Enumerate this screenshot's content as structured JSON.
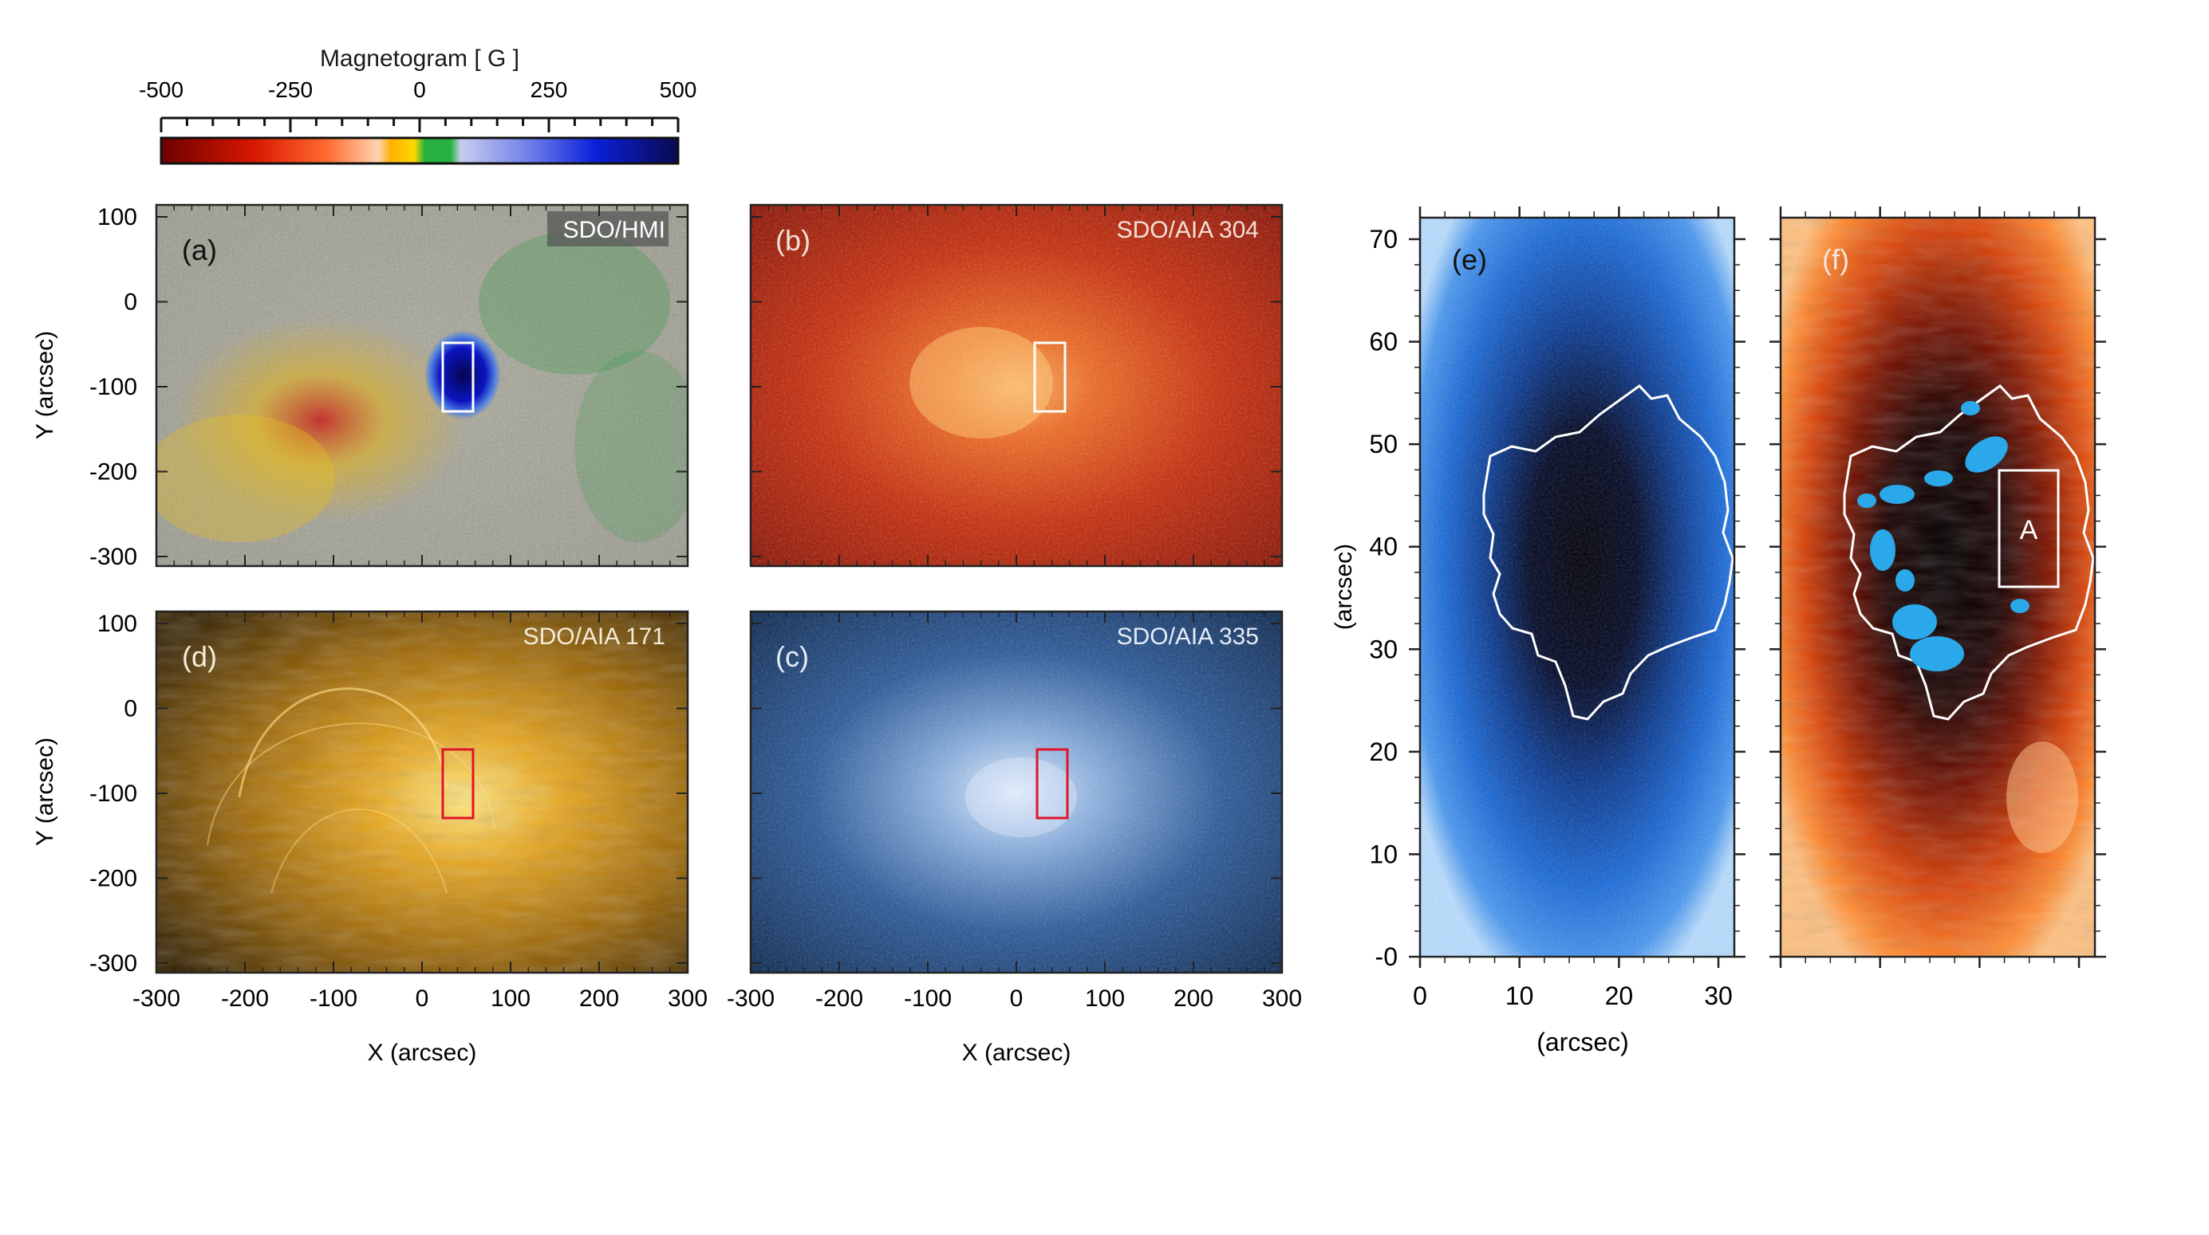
{
  "colorbar": {
    "title": "Magnetogram [ G ]",
    "ticks": [
      {
        "value": -500,
        "label": "-500"
      },
      {
        "value": -250,
        "label": "-250"
      },
      {
        "value": 0,
        "label": "0"
      },
      {
        "value": 250,
        "label": "250"
      },
      {
        "value": 500,
        "label": "500"
      }
    ]
  },
  "panels": {
    "a": {
      "label": "(a)",
      "instrument": "SDO/HMI"
    },
    "b": {
      "label": "(b)",
      "instrument": "SDO/AIA 304"
    },
    "c": {
      "label": "(c)",
      "instrument": "SDO/AIA 335"
    },
    "d": {
      "label": "(d)",
      "instrument": "SDO/AIA 171"
    },
    "e": {
      "label": "(e)"
    },
    "f": {
      "label": "(f)",
      "box_label": "A"
    }
  },
  "axes_small": {
    "xlabel": "X (arcsec)",
    "ylabel": "Y (arcsec)",
    "x_ticks": [
      "-300",
      "-200",
      "-100",
      "0",
      "100",
      "200",
      "300"
    ],
    "y_ticks": [
      "100",
      "0",
      "-100",
      "-200",
      "-300"
    ]
  },
  "axes_zoom": {
    "xlabel": "(arcsec)",
    "ylabel": "(arcsec)",
    "x_ticks": [
      "0",
      "10",
      "20",
      "30"
    ],
    "y_ticks": [
      "70",
      "60",
      "50",
      "40",
      "30",
      "20",
      "10",
      "-0"
    ]
  },
  "colors": {
    "box_white": "#ffffff",
    "box_red": "#e0142a",
    "patch_blue": "#2aa8ea"
  }
}
